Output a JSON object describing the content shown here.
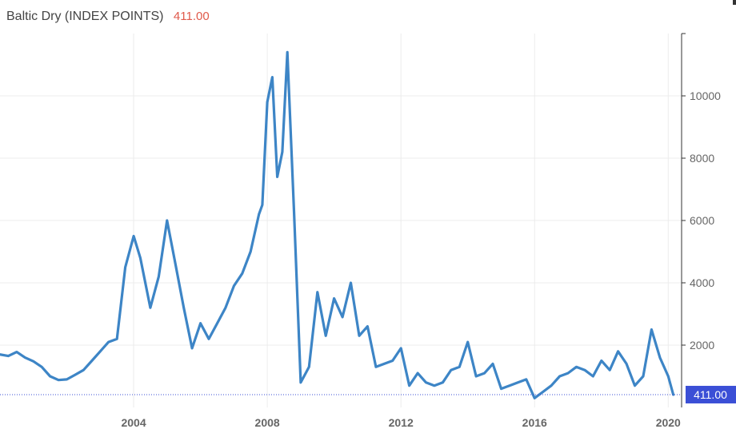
{
  "header": {
    "title": "Baltic Dry (INDEX POINTS)",
    "last_value": "411.00"
  },
  "colors": {
    "line": "#3d85c6",
    "last_value_text": "#e05a4b",
    "last_badge": "#3b4fd6",
    "grid": "#ececec"
  },
  "chart_data": {
    "type": "line",
    "title": "Baltic Dry (INDEX POINTS)",
    "xlabel": "",
    "ylabel": "",
    "xlim": [
      2000.0,
      2020.4
    ],
    "ylim": [
      0,
      12000
    ],
    "y_axis_position": "right",
    "grid": true,
    "x_ticks": [
      2004,
      2008,
      2012,
      2016,
      2020
    ],
    "x_tick_labels": [
      "2004",
      "2008",
      "2012",
      "2016",
      "2020"
    ],
    "y_ticks": [
      2000,
      4000,
      6000,
      8000,
      10000
    ],
    "y_tick_labels": [
      "2000",
      "4000",
      "6000",
      "8000",
      "10000"
    ],
    "last_value_label": "411.00",
    "series": [
      {
        "x": [
          2000.0,
          2000.25,
          2000.5,
          2000.75,
          2001.0,
          2001.25,
          2001.5,
          2001.75,
          2002.0,
          2002.25,
          2002.5,
          2002.75,
          2003.0,
          2003.25,
          2003.5,
          2003.75,
          2004.0,
          2004.2,
          2004.5,
          2004.75,
          2005.0,
          2005.25,
          2005.5,
          2005.75,
          2006.0,
          2006.25,
          2006.5,
          2006.75,
          2007.0,
          2007.25,
          2007.5,
          2007.75,
          2007.85,
          2008.0,
          2008.15,
          2008.3,
          2008.45,
          2008.6,
          2008.8,
          2009.0,
          2009.25,
          2009.5,
          2009.75,
          2010.0,
          2010.25,
          2010.5,
          2010.75,
          2011.0,
          2011.25,
          2011.5,
          2011.75,
          2012.0,
          2012.25,
          2012.5,
          2012.75,
          2013.0,
          2013.25,
          2013.5,
          2013.75,
          2014.0,
          2014.25,
          2014.5,
          2014.75,
          2015.0,
          2015.25,
          2015.5,
          2015.75,
          2016.0,
          2016.25,
          2016.5,
          2016.75,
          2017.0,
          2017.25,
          2017.5,
          2017.75,
          2018.0,
          2018.25,
          2018.5,
          2018.75,
          2019.0,
          2019.25,
          2019.5,
          2019.75,
          2020.0,
          2020.15
        ],
        "values": [
          1700,
          1650,
          1780,
          1600,
          1480,
          1300,
          1000,
          880,
          900,
          1050,
          1200,
          1500,
          1800,
          2100,
          2200,
          4500,
          5500,
          4800,
          3200,
          4200,
          6000,
          4600,
          3200,
          1900,
          2700,
          2200,
          2700,
          3200,
          3900,
          4300,
          5000,
          6200,
          6500,
          9800,
          10600,
          7400,
          8200,
          11400,
          6300,
          800,
          1300,
          3700,
          2300,
          3500,
          2900,
          4000,
          2300,
          2600,
          1300,
          1400,
          1500,
          1900,
          700,
          1100,
          800,
          700,
          800,
          1200,
          1300,
          2100,
          1000,
          1100,
          1400,
          600,
          700,
          800,
          900,
          300,
          500,
          700,
          1000,
          1100,
          1300,
          1200,
          1000,
          1500,
          1200,
          1800,
          1400,
          700,
          1000,
          2500,
          1600,
          1000,
          411
        ]
      }
    ]
  }
}
